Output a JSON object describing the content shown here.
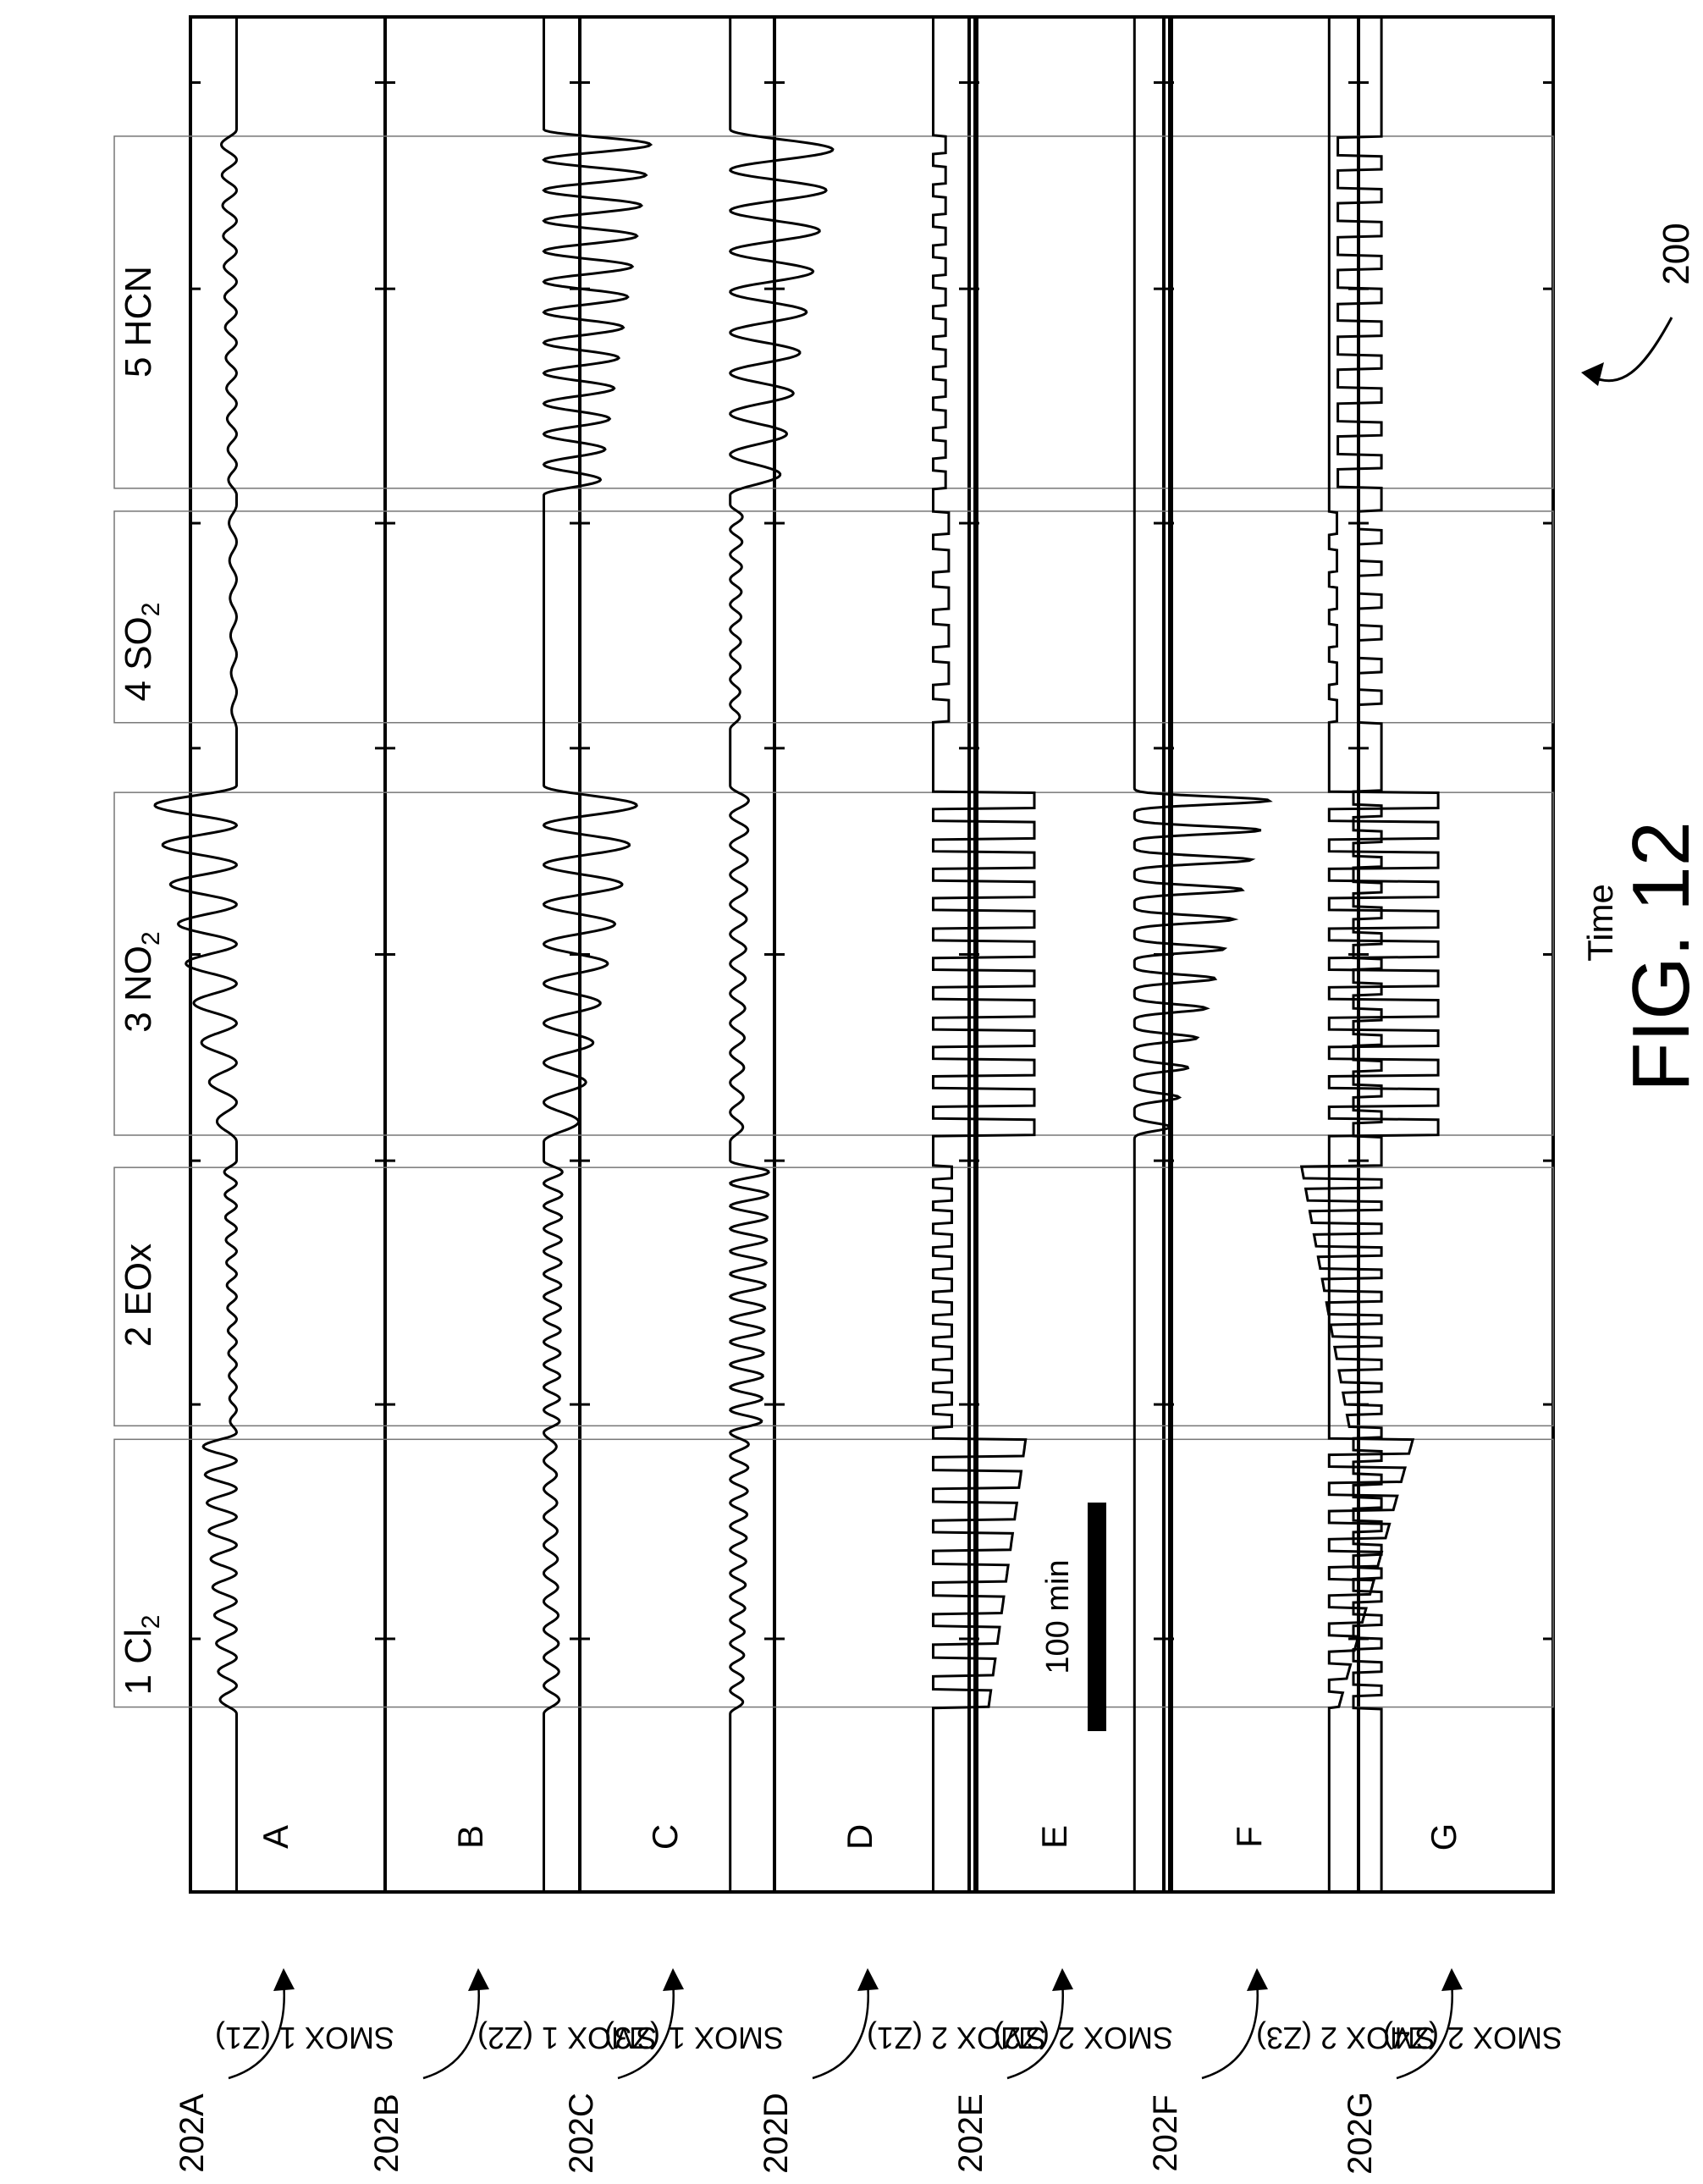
{
  "figure": {
    "caption": "FIG. 12",
    "reference": "200",
    "x_axis_label": "Time",
    "scale_bar_label": "100 min"
  },
  "gases": [
    {
      "number": "1",
      "name": "Cl",
      "sub": "2"
    },
    {
      "number": "2",
      "name": "EOx",
      "sub": ""
    },
    {
      "number": "3",
      "name": "NO",
      "sub": "2"
    },
    {
      "number": "4",
      "name": "SO",
      "sub": "2"
    },
    {
      "number": "5",
      "name": "HCN",
      "sub": ""
    }
  ],
  "panels": [
    {
      "letter": "A",
      "sensor": "SMOX 1 (Z1)",
      "ref": "202A"
    },
    {
      "letter": "B",
      "sensor": "SMOX 1 (Z2)",
      "ref": "202B"
    },
    {
      "letter": "C",
      "sensor": "SMOX 1 (Z3)",
      "ref": "202C"
    },
    {
      "letter": "D",
      "sensor": "SMOX 2 (Z1)",
      "ref": "202D"
    },
    {
      "letter": "E",
      "sensor": "SMOX 2 (Z2)",
      "ref": "202E"
    },
    {
      "letter": "F",
      "sensor": "SMOX 2 (Z3)",
      "ref": "202F"
    },
    {
      "letter": "G",
      "sensor": "SMOX 2 (Z4)",
      "ref": "202G"
    }
  ],
  "chart_data": {
    "type": "line",
    "series": [
      {
        "name": "A",
        "style": "sine",
        "baseline": 0.78,
        "segments": [
          [
            0.095,
            0.245,
            10,
            0.1,
            0.22
          ],
          [
            0.245,
            0.39,
            12,
            0.04,
            0.08
          ],
          [
            0.4,
            0.59,
            9,
            0.1,
            0.55
          ],
          [
            0.62,
            0.74,
            6,
            0.03,
            0.05
          ],
          [
            0.745,
            0.94,
            12,
            0.05,
            0.1
          ]
        ]
      },
      {
        "name": "B",
        "style": "sine",
        "baseline": 0.1,
        "segments": [
          [
            0.095,
            0.245,
            10,
            0.1,
            0.08
          ],
          [
            0.245,
            0.39,
            12,
            0.1,
            0.12
          ],
          [
            0.4,
            0.59,
            9,
            0.2,
            0.62
          ],
          [
            0.745,
            0.94,
            12,
            0.35,
            0.7
          ]
        ]
      },
      {
        "name": "C",
        "style": "sine",
        "baseline": 0.15,
        "segments": [
          [
            0.095,
            0.245,
            12,
            0.08,
            0.12
          ],
          [
            0.245,
            0.39,
            12,
            0.2,
            0.25
          ],
          [
            0.4,
            0.59,
            12,
            0.08,
            0.12
          ],
          [
            0.62,
            0.74,
            9,
            0.06,
            0.08
          ],
          [
            0.745,
            0.94,
            9,
            0.3,
            0.68
          ]
        ]
      },
      {
        "name": "D",
        "style": "square",
        "baseline": 0.1,
        "segments": [
          [
            0.095,
            0.245,
            9,
            0.35,
            0.6
          ],
          [
            0.245,
            0.39,
            12,
            0.12,
            0.12
          ],
          [
            0.4,
            0.59,
            12,
            0.65,
            0.65
          ],
          [
            0.62,
            0.74,
            6,
            0.1,
            0.1
          ],
          [
            0.745,
            0.94,
            12,
            0.08,
            0.08
          ]
        ]
      },
      {
        "name": "E",
        "style": "spike",
        "baseline": 0.06,
        "segments": [
          [
            0.4,
            0.59,
            12,
            0.2,
            0.9
          ]
        ]
      },
      {
        "name": "F",
        "style": "square",
        "baseline": 0.06,
        "segments": [
          [
            0.095,
            0.245,
            10,
            0.05,
            0.55
          ],
          [
            0.4,
            0.59,
            12,
            0.7,
            0.7
          ],
          [
            0.62,
            0.74,
            6,
            0.05,
            0.05
          ]
        ]
      },
      {
        "name": "G",
        "style": "square",
        "baseline": 0.92,
        "segments": [
          [
            0.095,
            0.245,
            12,
            0.18,
            0.18
          ],
          [
            0.245,
            0.39,
            12,
            0.2,
            0.52
          ],
          [
            0.4,
            0.59,
            14,
            0.18,
            0.18
          ],
          [
            0.62,
            0.74,
            7,
            0.15,
            0.15
          ],
          [
            0.745,
            0.94,
            11,
            0.28,
            0.28
          ]
        ]
      }
    ]
  }
}
